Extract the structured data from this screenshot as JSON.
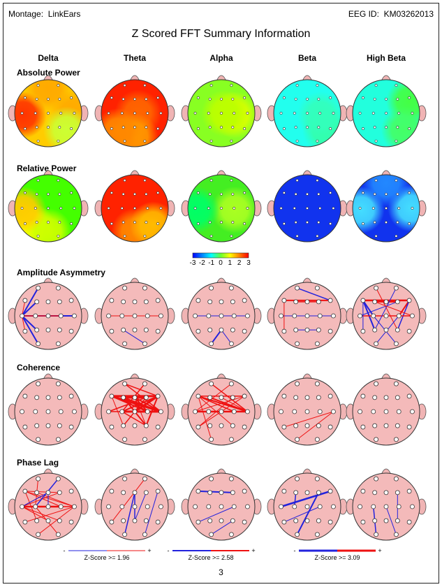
{
  "header": {
    "montage_label": "Montage:",
    "montage_value": "LinkEars",
    "eeg_id_label": "EEG ID:",
    "eeg_id_value": "KM03262013",
    "title": "Z Scored FFT Summary Information"
  },
  "bands": [
    "Delta",
    "Theta",
    "Alpha",
    "Beta",
    "High Beta"
  ],
  "rows": [
    "Absolute Power",
    "Relative Power",
    "Amplitude Asymmetry",
    "Coherence",
    "Phase Lag"
  ],
  "color_scale": {
    "ticks": [
      "-3",
      "-2",
      "-1",
      "0",
      "1",
      "2",
      "3"
    ],
    "colors": [
      "#0000ff",
      "#0080ff",
      "#00ffff",
      "#66ff33",
      "#ffff00",
      "#ff8000",
      "#ff0000"
    ]
  },
  "maps": {
    "absolute_power": [
      {
        "base": "#ffcc00",
        "blobs": [
          {
            "pos": "left-temporal",
            "color": "#ff3300"
          },
          {
            "pos": "right-temporal",
            "color": "#ffaa00"
          },
          {
            "pos": "right-posterior",
            "color": "#ccff33"
          },
          {
            "pos": "frontal",
            "color": "#ffaa00"
          }
        ]
      },
      {
        "base": "#ff2200",
        "blobs": [
          {
            "pos": "center",
            "color": "#ff6600"
          },
          {
            "pos": "posterior",
            "color": "#ff9900"
          },
          {
            "pos": "left-posterior",
            "color": "#ff8800"
          }
        ]
      },
      {
        "base": "#88ff22",
        "blobs": [
          {
            "pos": "right-central",
            "color": "#ddff00"
          },
          {
            "pos": "center",
            "color": "#bbff00"
          }
        ]
      },
      {
        "base": "#22ffee",
        "blobs": [
          {
            "pos": "right-posterior",
            "color": "#33ffaa"
          },
          {
            "pos": "right-central",
            "color": "#33ffbb"
          }
        ]
      },
      {
        "base": "#22ffdd",
        "blobs": [
          {
            "pos": "right-frontal",
            "color": "#44ff44"
          },
          {
            "pos": "right-posterior",
            "color": "#44ff66"
          }
        ]
      }
    ],
    "relative_power": [
      {
        "base": "#44ff00",
        "blobs": [
          {
            "pos": "left-posterior",
            "color": "#ffff00"
          },
          {
            "pos": "posterior",
            "color": "#ccff00"
          },
          {
            "pos": "left-temporal",
            "color": "#ffcc00"
          }
        ]
      },
      {
        "base": "#ff2200",
        "blobs": [
          {
            "pos": "posterior",
            "color": "#ff8800"
          },
          {
            "pos": "right-posterior",
            "color": "#ffbb00"
          }
        ]
      },
      {
        "base": "#44ee22",
        "blobs": [
          {
            "pos": "right-central",
            "color": "#aaff22"
          },
          {
            "pos": "left-temporal",
            "color": "#00ff66"
          }
        ]
      },
      {
        "base": "#1133ee",
        "blobs": []
      },
      {
        "base": "#1133ee",
        "blobs": [
          {
            "pos": "left-temporal",
            "color": "#44ddff"
          },
          {
            "pos": "right-temporal",
            "color": "#44ddff"
          },
          {
            "pos": "frontal",
            "color": "#2288ff"
          }
        ]
      }
    ]
  },
  "connectivity": {
    "amplitude_asymmetry": [
      [
        [
          "T3",
          "Fp1",
          "blue",
          2
        ],
        [
          "T3",
          "F3",
          "blue",
          2
        ],
        [
          "T3",
          "C3",
          "blue",
          2
        ],
        [
          "T3",
          "P3",
          "blue",
          2
        ],
        [
          "T3",
          "O1",
          "blue",
          2
        ],
        [
          "T3",
          "Cz",
          "blue",
          1.5
        ],
        [
          "T3",
          "T4",
          "blue",
          2
        ],
        [
          "T3",
          "F7",
          "red",
          1
        ],
        [
          "T3",
          "T5",
          "red",
          1
        ],
        [
          "T3",
          "C4",
          "red",
          1.5
        ]
      ],
      [
        [
          "T3",
          "T4",
          "red",
          1
        ],
        [
          "P3",
          "O2",
          "blue",
          1
        ]
      ],
      [
        [
          "T3",
          "T4",
          "blue",
          1
        ],
        [
          "O1",
          "Pz",
          "blue",
          2
        ],
        [
          "Pz",
          "O2",
          "blue",
          1
        ]
      ],
      [
        [
          "F7",
          "F8",
          "red",
          2
        ],
        [
          "Fp1",
          "F8",
          "blue",
          1.5
        ],
        [
          "F3",
          "F4",
          "red",
          1.5
        ],
        [
          "T3",
          "T4",
          "blue",
          1
        ],
        [
          "P3",
          "P4",
          "blue",
          1
        ],
        [
          "F7",
          "T5",
          "red",
          1
        ]
      ],
      [
        [
          "F7",
          "F8",
          "red",
          2.5
        ],
        [
          "F3",
          "F4",
          "red",
          2
        ],
        [
          "F7",
          "C3",
          "blue",
          2
        ],
        [
          "F7",
          "P3",
          "blue",
          2
        ],
        [
          "F8",
          "C4",
          "red",
          2
        ],
        [
          "F8",
          "P4",
          "blue",
          1.5
        ],
        [
          "T3",
          "T4",
          "red",
          1.5
        ],
        [
          "F7",
          "T5",
          "blue",
          1
        ],
        [
          "Fp1",
          "P4",
          "red",
          1
        ],
        [
          "Fp2",
          "P3",
          "blue",
          1
        ],
        [
          "T3",
          "F4",
          "blue",
          1
        ],
        [
          "F3",
          "T4",
          "red",
          1
        ],
        [
          "C3",
          "O2",
          "blue",
          1
        ],
        [
          "C4",
          "O1",
          "blue",
          1
        ]
      ]
    ],
    "coherence": [
      [],
      [
        [
          "F7",
          "F8",
          "red",
          3
        ],
        [
          "F7",
          "T4",
          "red",
          3
        ],
        [
          "F7",
          "C4",
          "red",
          2
        ],
        [
          "F3",
          "F4",
          "red",
          3
        ],
        [
          "F3",
          "T4",
          "red",
          2
        ],
        [
          "Fz",
          "T4",
          "red",
          2
        ],
        [
          "C3",
          "F8",
          "red",
          2
        ],
        [
          "C3",
          "T4",
          "red",
          3
        ],
        [
          "Cz",
          "F8",
          "red",
          3
        ],
        [
          "Cz",
          "T4",
          "red",
          2
        ],
        [
          "T3",
          "F4",
          "red",
          1.5
        ],
        [
          "T3",
          "C4",
          "red",
          1.5
        ],
        [
          "F3",
          "P4",
          "red",
          2
        ],
        [
          "Fz",
          "C4",
          "red",
          2
        ],
        [
          "F8",
          "P4",
          "red",
          2
        ],
        [
          "C3",
          "P4",
          "red",
          1.5
        ],
        [
          "F3",
          "C4",
          "red",
          2
        ],
        [
          "F7",
          "P3",
          "red",
          1
        ],
        [
          "Fp1",
          "T4",
          "red",
          1.5
        ],
        [
          "Fp2",
          "C3",
          "red",
          1.5
        ],
        [
          "Fp1",
          "F8",
          "red",
          1.5
        ],
        [
          "F4",
          "P3",
          "red",
          1.5
        ],
        [
          "Fz",
          "P4",
          "red",
          1
        ]
      ],
      [
        [
          "F7",
          "T4",
          "red",
          2
        ],
        [
          "F7",
          "C4",
          "red",
          1.5
        ],
        [
          "F7",
          "F8",
          "red",
          1.5
        ],
        [
          "F3",
          "T4",
          "red",
          2
        ],
        [
          "T3",
          "T4",
          "red",
          2.5
        ],
        [
          "C3",
          "T4",
          "red",
          2
        ],
        [
          "F8",
          "T5",
          "red",
          1
        ],
        [
          "F7",
          "O1",
          "red",
          1
        ],
        [
          "Fp1",
          "T4",
          "red",
          1.5
        ],
        [
          "Fz",
          "T4",
          "red",
          1
        ],
        [
          "Cz",
          "T4",
          "red",
          1.5
        ],
        [
          "F4",
          "T5",
          "red",
          1
        ],
        [
          "T3",
          "F8",
          "red",
          1
        ],
        [
          "F7",
          "P4",
          "red",
          1
        ],
        [
          "Fp2",
          "T3",
          "red",
          1
        ]
      ],
      [
        [
          "T5",
          "T4",
          "red",
          1
        ],
        [
          "O1",
          "T4",
          "red",
          1
        ]
      ],
      []
    ],
    "phase_lag": [
      [
        [
          "T3",
          "C4",
          "red",
          2.5
        ],
        [
          "T3",
          "T4",
          "red",
          1.5
        ],
        [
          "T3",
          "F4",
          "red",
          1
        ],
        [
          "T3",
          "Fz",
          "red",
          1
        ],
        [
          "C3",
          "T4",
          "red",
          1
        ],
        [
          "F7",
          "T4",
          "red",
          1
        ],
        [
          "F7",
          "C4",
          "red",
          1
        ],
        [
          "F3",
          "T4",
          "red",
          1
        ],
        [
          "F7",
          "F4",
          "red",
          1
        ],
        [
          "Fp1",
          "C3",
          "red",
          1
        ],
        [
          "T5",
          "T4",
          "red",
          1
        ],
        [
          "O1",
          "T4",
          "red",
          1
        ],
        [
          "T3",
          "P4",
          "red",
          1
        ],
        [
          "F7",
          "P3",
          "red",
          1
        ],
        [
          "Fz",
          "T3",
          "blue",
          1
        ],
        [
          "Fp2",
          "C3",
          "blue",
          1.5
        ],
        [
          "Fz",
          "Cz",
          "blue",
          1
        ],
        [
          "T3",
          "Pz",
          "red",
          1
        ],
        [
          "C3",
          "O2",
          "red",
          1
        ]
      ],
      [
        [
          "Fz",
          "O1",
          "blue",
          1.5
        ],
        [
          "F8",
          "O2",
          "blue",
          1
        ],
        [
          "Fp2",
          "T5",
          "red",
          1
        ],
        [
          "Pz",
          "F4",
          "blue",
          1
        ],
        [
          "Fz",
          "Pz",
          "blue",
          1.5
        ]
      ],
      [
        [
          "F7",
          "F4",
          "blue",
          2
        ],
        [
          "T5",
          "C4",
          "blue",
          1
        ],
        [
          "O1",
          "P4",
          "blue",
          1
        ]
      ],
      [
        [
          "T3",
          "F8",
          "blue",
          2.5
        ],
        [
          "F3",
          "C3",
          "blue",
          1.5
        ],
        [
          "O1",
          "F4",
          "blue",
          2
        ],
        [
          "T5",
          "C4",
          "blue",
          1
        ]
      ],
      [
        [
          "C3",
          "O1",
          "blue",
          1.5
        ],
        [
          "Cz",
          "O2",
          "blue",
          1
        ],
        [
          "F4",
          "P4",
          "blue",
          1
        ]
      ]
    ]
  },
  "legends": [
    {
      "minus": "-",
      "plus": "+",
      "label": "Z-Score >= 1.96"
    },
    {
      "minus": "-",
      "plus": "+",
      "label": "Z-Score >= 2.58"
    },
    {
      "minus": "-",
      "plus": "+",
      "label": "Z-Score >= 3.09"
    }
  ],
  "page_number": "3"
}
